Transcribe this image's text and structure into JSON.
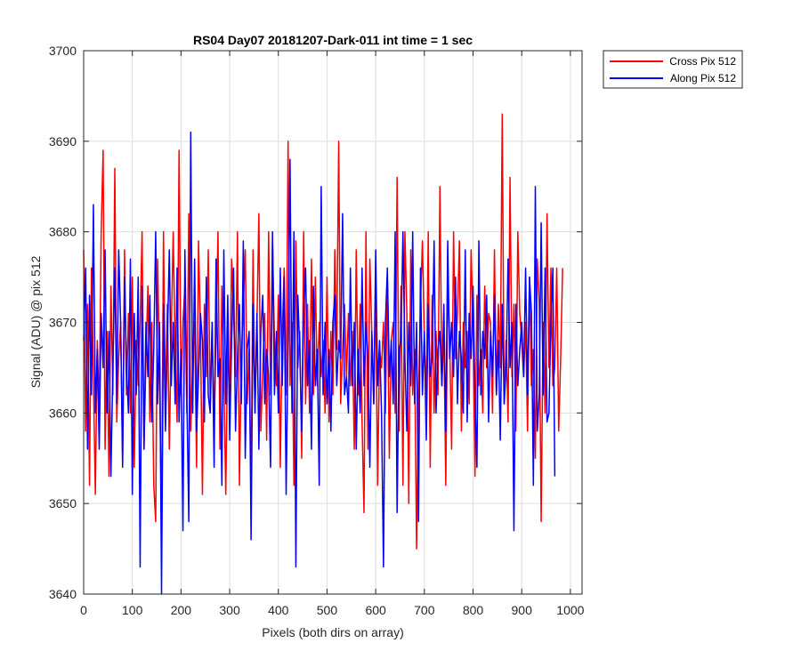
{
  "chart_data": {
    "type": "line",
    "title": "RS04 Day07 20181207-Dark-011 int time = 1 sec",
    "xlabel": "Pixels (both dirs on array)",
    "ylabel": "Signal (ADU) @ pix 512",
    "xlim": [
      0,
      1024
    ],
    "ylim": [
      3640,
      3700
    ],
    "xticks": [
      0,
      100,
      200,
      300,
      400,
      500,
      600,
      700,
      800,
      900,
      1000
    ],
    "yticks": [
      3640,
      3650,
      3660,
      3670,
      3680,
      3690,
      3700
    ],
    "grid": true,
    "legend_position": "outside-top-right",
    "x_step": 4,
    "series": [
      {
        "name": "Cross Pix 512",
        "color": "#ff0000",
        "values": [
          3678,
          3658,
          3672,
          3652,
          3676,
          3664,
          3651,
          3668,
          3660,
          3680,
          3689,
          3656,
          3669,
          3653,
          3674,
          3662,
          3687,
          3659,
          3666,
          3670,
          3655,
          3678,
          3662,
          3671,
          3660,
          3675,
          3654,
          3668,
          3663,
          3670,
          3680,
          3656,
          3666,
          3674,
          3659,
          3670,
          3652,
          3648,
          3677,
          3664,
          3647,
          3680,
          3661,
          3672,
          3656,
          3669,
          3680,
          3667,
          3659,
          3689,
          3662,
          3670,
          3674,
          3660,
          3682,
          3658,
          3666,
          3670,
          3654,
          3679,
          3669,
          3651,
          3672,
          3664,
          3678,
          3661,
          3670,
          3658,
          3669,
          3680,
          3656,
          3674,
          3664,
          3651,
          3668,
          3661,
          3677,
          3671,
          3664,
          3680,
          3652,
          3666,
          3672,
          3678,
          3661,
          3667,
          3651,
          3678,
          3660,
          3670,
          3682,
          3658,
          3665,
          3671,
          3657,
          3680,
          3662,
          3679,
          3668,
          3663,
          3673,
          3654,
          3669,
          3676,
          3662,
          3690,
          3663,
          3670,
          3652,
          3679,
          3665,
          3669,
          3655,
          3680,
          3661,
          3672,
          3660,
          3677,
          3662,
          3675,
          3663,
          3670,
          3664,
          3668,
          3660,
          3675,
          3659,
          3669,
          3662,
          3678,
          3667,
          3690,
          3661,
          3667,
          3672,
          3664,
          3671,
          3663,
          3669,
          3656,
          3678,
          3662,
          3672,
          3659,
          3649,
          3680,
          3656,
          3677,
          3669,
          3661,
          3674,
          3652,
          3667,
          3665,
          3670,
          3660,
          3675,
          3655,
          3668,
          3670,
          3660,
          3686,
          3658,
          3674,
          3652,
          3680,
          3671,
          3650,
          3678,
          3662,
          3667,
          3645,
          3662,
          3672,
          3679,
          3668,
          3662,
          3680,
          3654,
          3673,
          3660,
          3669,
          3662,
          3685,
          3663,
          3669,
          3652,
          3674,
          3668,
          3656,
          3680,
          3666,
          3671,
          3679,
          3658,
          3670,
          3665,
          3669,
          3661,
          3678,
          3670,
          3653,
          3673,
          3663,
          3667,
          3660,
          3674,
          3665,
          3671,
          3670,
          3660,
          3678,
          3662,
          3672,
          3665,
          3693,
          3661,
          3668,
          3659,
          3686,
          3664,
          3672,
          3658,
          3680,
          3671,
          3668,
          3664,
          3670,
          3658,
          3675,
          3663,
          3667,
          3655,
          3677,
          3672,
          3648,
          3670,
          3660,
          3682,
          3665,
          3676,
          3663,
          3665,
          3676,
          3658,
          3666,
          3676
        ]
      },
      {
        "name": "Along Pix 512",
        "color": "#0000ff",
        "values": [
          3668,
          3676,
          3656,
          3673,
          3662,
          3683,
          3660,
          3667,
          3656,
          3671,
          3665,
          3678,
          3660,
          3669,
          3653,
          3665,
          3676,
          3661,
          3678,
          3670,
          3654,
          3675,
          3665,
          3660,
          3677,
          3651,
          3671,
          3662,
          3675,
          3643,
          3674,
          3656,
          3670,
          3664,
          3673,
          3659,
          3667,
          3680,
          3661,
          3670,
          3640,
          3672,
          3658,
          3668,
          3678,
          3663,
          3670,
          3661,
          3676,
          3659,
          3667,
          3647,
          3678,
          3662,
          3648,
          3691,
          3660,
          3677,
          3658,
          3664,
          3671,
          3668,
          3659,
          3675,
          3662,
          3660,
          3670,
          3654,
          3677,
          3664,
          3666,
          3652,
          3678,
          3661,
          3673,
          3657,
          3668,
          3676,
          3658,
          3666,
          3672,
          3661,
          3679,
          3655,
          3667,
          3669,
          3646,
          3672,
          3660,
          3671,
          3656,
          3669,
          3673,
          3661,
          3667,
          3664,
          3654,
          3680,
          3662,
          3669,
          3660,
          3676,
          3663,
          3675,
          3651,
          3668,
          3688,
          3660,
          3680,
          3643,
          3673,
          3667,
          3658,
          3671,
          3676,
          3663,
          3668,
          3656,
          3674,
          3663,
          3667,
          3652,
          3685,
          3662,
          3670,
          3661,
          3667,
          3658,
          3670,
          3673,
          3663,
          3668,
          3666,
          3682,
          3662,
          3664,
          3660,
          3676,
          3663,
          3670,
          3656,
          3667,
          3660,
          3676,
          3663,
          3670,
          3666,
          3654,
          3669,
          3661,
          3678,
          3663,
          3668,
          3660,
          3643,
          3670,
          3676,
          3664,
          3668,
          3661,
          3680,
          3649,
          3667,
          3668,
          3680,
          3666,
          3658,
          3670,
          3663,
          3680,
          3661,
          3670,
          3648,
          3676,
          3662,
          3669,
          3657,
          3672,
          3664,
          3666,
          3679,
          3660,
          3667,
          3669,
          3663,
          3672,
          3658,
          3679,
          3666,
          3670,
          3664,
          3675,
          3661,
          3669,
          3666,
          3660,
          3678,
          3659,
          3671,
          3666,
          3674,
          3662,
          3654,
          3679,
          3662,
          3669,
          3666,
          3673,
          3659,
          3669,
          3664,
          3673,
          3662,
          3668,
          3657,
          3672,
          3661,
          3665,
          3677,
          3665,
          3670,
          3647,
          3672,
          3663,
          3667,
          3670,
          3664,
          3676,
          3662,
          3675,
          3671,
          3652,
          3685,
          3658,
          3662,
          3681,
          3662,
          3676,
          3659,
          3660,
          3670,
          3676,
          3653
        ]
      }
    ]
  }
}
